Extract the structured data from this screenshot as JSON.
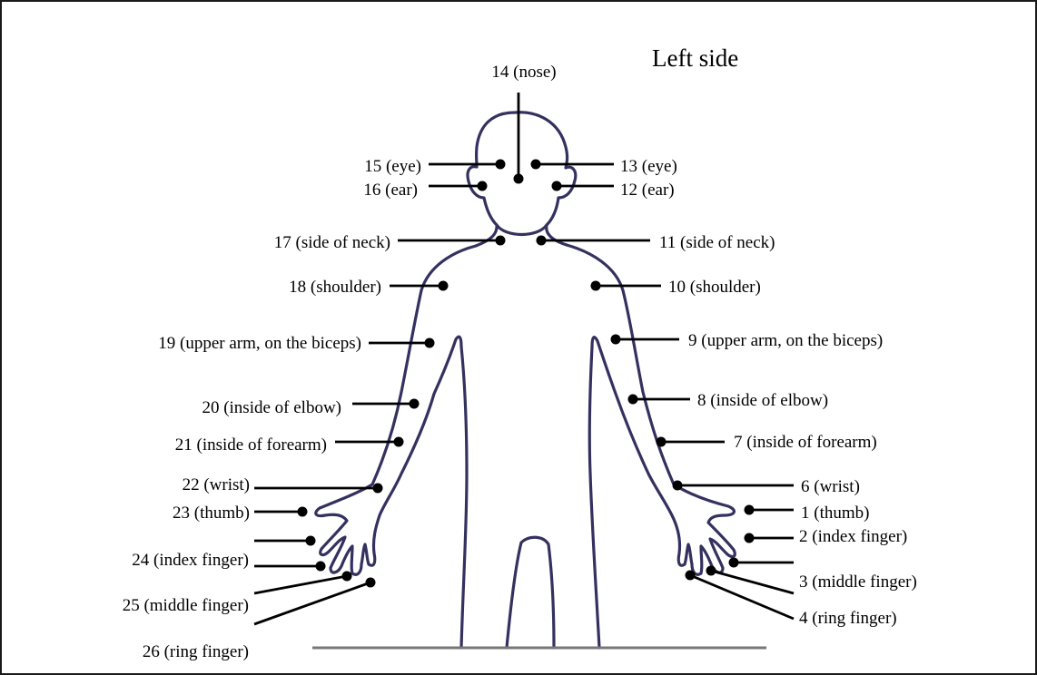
{
  "title": "Left side",
  "points": [
    {
      "id": "p1",
      "text": "1 (thumb)"
    },
    {
      "id": "p2",
      "text": "2 (index finger)"
    },
    {
      "id": "p3",
      "text": "3 (middle finger)"
    },
    {
      "id": "p4",
      "text": "4 (ring finger)"
    },
    {
      "id": "p6",
      "text": "6 (wrist)"
    },
    {
      "id": "p7",
      "text": "7 (inside of forearm)"
    },
    {
      "id": "p8",
      "text": "8 (inside of elbow)"
    },
    {
      "id": "p9",
      "text": "9 (upper arm, on the biceps)"
    },
    {
      "id": "p10",
      "text": "10 (shoulder)"
    },
    {
      "id": "p11",
      "text": "11 (side of neck)"
    },
    {
      "id": "p12",
      "text": "12 (ear)"
    },
    {
      "id": "p13",
      "text": "13 (eye)"
    },
    {
      "id": "p14",
      "text": "14 (nose)"
    },
    {
      "id": "p15",
      "text": "15 (eye)"
    },
    {
      "id": "p16",
      "text": "16 (ear)"
    },
    {
      "id": "p17",
      "text": "17 (side of neck)"
    },
    {
      "id": "p18",
      "text": "18 (shoulder)"
    },
    {
      "id": "p19",
      "text": "19 (upper arm, on the biceps)"
    },
    {
      "id": "p20",
      "text": "20 (inside of elbow)"
    },
    {
      "id": "p21",
      "text": "21 (inside of forearm)"
    },
    {
      "id": "p22",
      "text": "22 (wrist)"
    },
    {
      "id": "p23",
      "text": "23 (thumb)"
    },
    {
      "id": "p24",
      "text": "24 (index finger)"
    },
    {
      "id": "p25",
      "text": "25 (middle finger)"
    },
    {
      "id": "p26",
      "text": "26 (ring finger)"
    }
  ]
}
